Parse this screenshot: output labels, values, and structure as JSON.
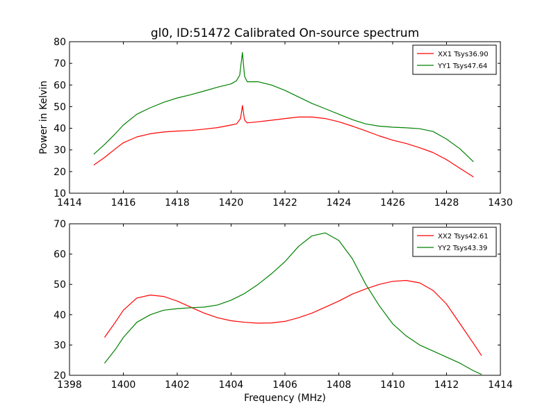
{
  "chart_data": [
    {
      "type": "line",
      "title": "gl0, ID:51472 Calibrated On-source spectrum",
      "xlabel": "",
      "ylabel": "Power in Kelvin",
      "xlim": [
        1414,
        1430
      ],
      "ylim": [
        10,
        80
      ],
      "xticks": [
        1414,
        1416,
        1418,
        1420,
        1422,
        1424,
        1426,
        1428,
        1430
      ],
      "yticks": [
        10,
        20,
        30,
        40,
        50,
        60,
        70,
        80
      ],
      "grid": false,
      "legend_position": "top-right",
      "series": [
        {
          "name": "XX1 Tsys36.90",
          "color": "#ff0000",
          "x": [
            1414.9,
            1415.3,
            1415.7,
            1416.0,
            1416.5,
            1417.0,
            1417.5,
            1418.0,
            1418.5,
            1419.0,
            1419.5,
            1420.0,
            1420.2,
            1420.35,
            1420.42,
            1420.5,
            1420.6,
            1421.0,
            1421.5,
            1422.0,
            1422.5,
            1423.0,
            1423.5,
            1424.0,
            1424.5,
            1425.0,
            1425.5,
            1426.0,
            1426.5,
            1427.0,
            1427.5,
            1428.0,
            1428.5,
            1429.0
          ],
          "y": [
            23.0,
            26.5,
            30.5,
            33.3,
            36.0,
            37.5,
            38.3,
            38.7,
            39.0,
            39.6,
            40.3,
            41.5,
            42.0,
            44.5,
            50.5,
            43.8,
            42.5,
            43.0,
            43.7,
            44.5,
            45.2,
            45.2,
            44.5,
            43.0,
            41.0,
            38.8,
            36.5,
            34.5,
            33.0,
            31.0,
            28.8,
            25.5,
            21.5,
            17.5
          ]
        },
        {
          "name": "YY1 Tsys47.64",
          "color": "#008000",
          "x": [
            1414.9,
            1415.3,
            1415.7,
            1416.0,
            1416.5,
            1417.0,
            1417.5,
            1418.0,
            1418.5,
            1419.0,
            1419.5,
            1420.0,
            1420.2,
            1420.32,
            1420.42,
            1420.5,
            1420.6,
            1421.0,
            1421.5,
            1422.0,
            1422.5,
            1423.0,
            1423.5,
            1424.0,
            1424.5,
            1425.0,
            1425.5,
            1426.0,
            1426.5,
            1427.0,
            1427.5,
            1428.0,
            1428.5,
            1429.0
          ],
          "y": [
            28.0,
            32.5,
            37.5,
            41.5,
            46.5,
            49.5,
            52.0,
            54.0,
            55.5,
            57.2,
            59.0,
            60.5,
            62.0,
            64.5,
            75.0,
            64.0,
            61.5,
            61.5,
            60.0,
            57.5,
            54.5,
            51.5,
            49.0,
            46.5,
            44.0,
            42.0,
            41.0,
            40.5,
            40.2,
            39.8,
            38.5,
            35.0,
            30.5,
            24.5
          ]
        }
      ]
    },
    {
      "type": "line",
      "title": "",
      "xlabel": "Frequency (MHz)",
      "ylabel": "",
      "xlim": [
        1398,
        1414
      ],
      "ylim": [
        20,
        70
      ],
      "xticks": [
        1398,
        1400,
        1402,
        1404,
        1406,
        1408,
        1410,
        1412,
        1414
      ],
      "yticks": [
        20,
        30,
        40,
        50,
        60,
        70
      ],
      "grid": false,
      "legend_position": "top-right",
      "series": [
        {
          "name": "XX2 Tsys42.61",
          "color": "#ff0000",
          "x": [
            1399.3,
            1399.7,
            1400.0,
            1400.5,
            1401.0,
            1401.5,
            1402.0,
            1402.5,
            1403.0,
            1403.5,
            1404.0,
            1404.5,
            1405.0,
            1405.5,
            1406.0,
            1406.5,
            1407.0,
            1407.5,
            1408.0,
            1408.5,
            1409.0,
            1409.5,
            1410.0,
            1410.5,
            1411.0,
            1411.5,
            1412.0,
            1412.5,
            1413.0,
            1413.3
          ],
          "y": [
            32.5,
            37.5,
            41.5,
            45.5,
            46.5,
            46.0,
            44.5,
            42.5,
            40.5,
            39.0,
            38.0,
            37.5,
            37.2,
            37.3,
            37.8,
            39.0,
            40.5,
            42.5,
            44.5,
            46.8,
            48.5,
            50.0,
            51.0,
            51.3,
            50.5,
            48.0,
            43.5,
            37.0,
            30.5,
            26.5
          ]
        },
        {
          "name": "YY2 Tsys43.39",
          "color": "#008000",
          "x": [
            1399.3,
            1399.7,
            1400.0,
            1400.5,
            1401.0,
            1401.5,
            1402.0,
            1402.5,
            1403.0,
            1403.5,
            1404.0,
            1404.5,
            1405.0,
            1405.5,
            1406.0,
            1406.5,
            1407.0,
            1407.5,
            1408.0,
            1408.5,
            1409.0,
            1409.5,
            1410.0,
            1410.5,
            1411.0,
            1411.5,
            1412.0,
            1412.5,
            1413.0,
            1413.3
          ],
          "y": [
            24.0,
            28.5,
            32.5,
            37.5,
            40.0,
            41.5,
            42.0,
            42.3,
            42.5,
            43.2,
            44.8,
            47.0,
            50.0,
            53.5,
            57.5,
            62.5,
            66.0,
            67.0,
            64.5,
            58.5,
            50.0,
            43.0,
            37.0,
            33.0,
            30.0,
            28.0,
            26.0,
            24.0,
            21.5,
            20.3
          ]
        }
      ]
    }
  ]
}
